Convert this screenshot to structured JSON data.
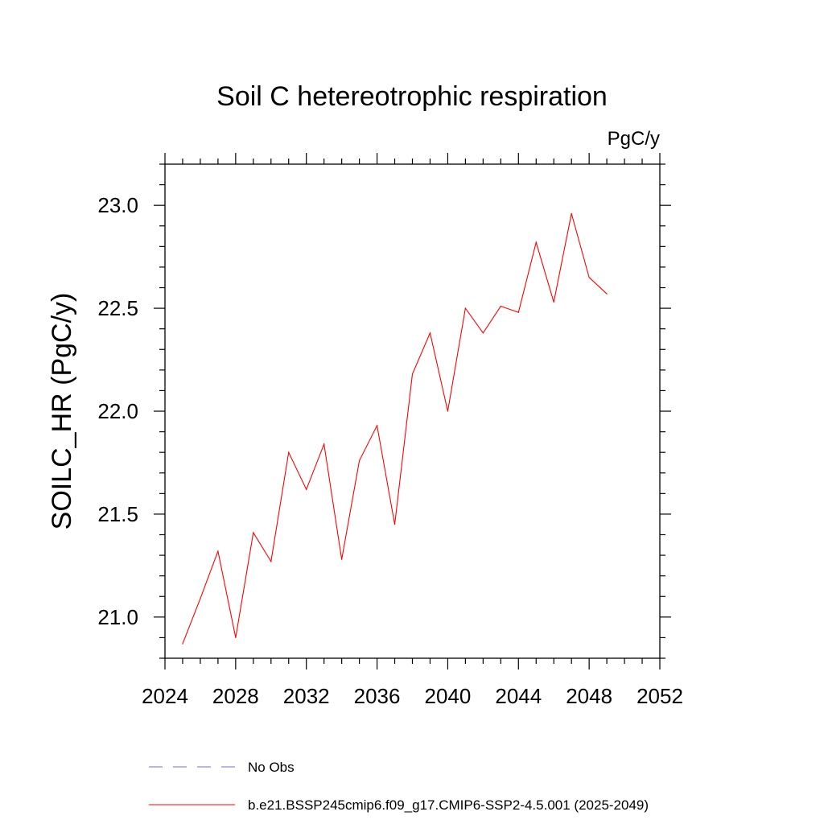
{
  "chart_data": {
    "type": "line",
    "title": "Soil C hetereotrophic respiration",
    "units_label": "PgC/y",
    "ylabel": "SOILC_HR  (PgC/y)",
    "xlabel": "",
    "xlim": [
      2024,
      2052
    ],
    "ylim": [
      20.8,
      23.2
    ],
    "x_ticks": [
      2024,
      2028,
      2032,
      2036,
      2040,
      2044,
      2048,
      2052
    ],
    "x_tick_labels": [
      "2024",
      "2028",
      "2032",
      "2036",
      "2040",
      "2044",
      "2048",
      "2052"
    ],
    "x_minor_step": 1,
    "y_ticks": [
      21.0,
      21.5,
      22.0,
      22.5,
      23.0
    ],
    "y_tick_labels": [
      "21.0",
      "21.5",
      "22.0",
      "22.5",
      "23.0"
    ],
    "y_minor_step": 0.1,
    "grid": false,
    "series": [
      {
        "name": "b.e21.BSSP245cmip6.f09_g17.CMIP6-SSP2-4.5.001 (2025-2049)",
        "color": "#ff0000",
        "dash": "solid",
        "x": [
          2025,
          2026,
          2027,
          2028,
          2029,
          2030,
          2031,
          2032,
          2033,
          2034,
          2035,
          2036,
          2037,
          2038,
          2039,
          2040,
          2041,
          2042,
          2043,
          2044,
          2045,
          2046,
          2047,
          2048,
          2049
        ],
        "values": [
          20.87,
          21.09,
          21.32,
          20.9,
          21.41,
          21.27,
          21.8,
          21.62,
          21.84,
          21.28,
          21.76,
          21.93,
          21.45,
          22.18,
          22.38,
          22.0,
          22.5,
          22.38,
          22.51,
          22.48,
          22.82,
          22.53,
          22.96,
          22.65,
          22.57
        ]
      }
    ],
    "legend": {
      "placement": "bottom",
      "entries": [
        {
          "label": "No Obs",
          "color": "#7b68c8",
          "dash": "dashed"
        },
        {
          "label": "b.e21.BSSP245cmip6.f09_g17.CMIP6-SSP2-4.5.001 (2025-2049)",
          "color": "#ff0000",
          "dash": "solid"
        }
      ]
    }
  }
}
